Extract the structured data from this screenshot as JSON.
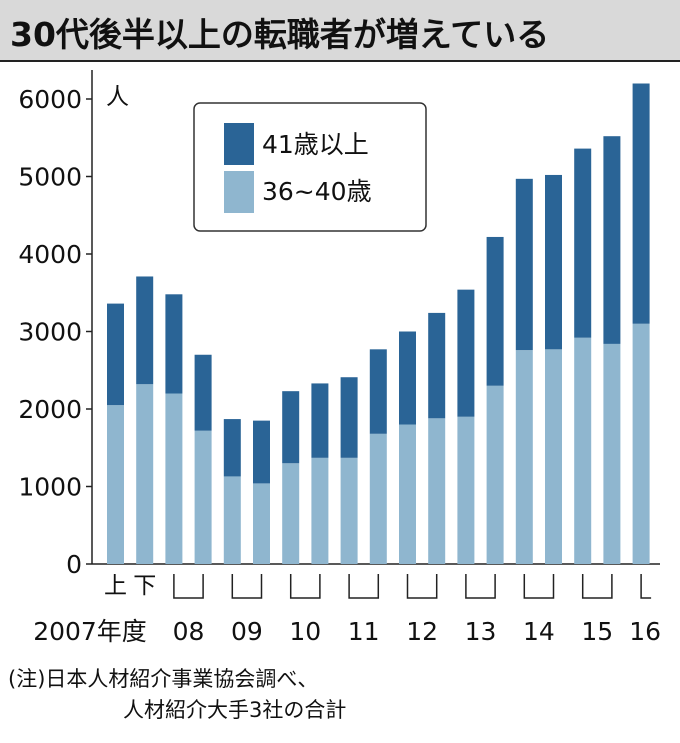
{
  "title": "30代後半以上の転職者が増えている",
  "note": {
    "line1": "(注)日本人材紹介事業協会調べ、",
    "line2": "人材紹介大手3社の合計"
  },
  "colors": {
    "older": "#2a6496",
    "younger": "#8fb6cf",
    "title_bg": "#d9d9d9"
  },
  "chart_data": {
    "type": "bar",
    "stacked": true,
    "title": "30代後半以上の転職者が増えている",
    "ylabel": "人",
    "xlabel": "",
    "ylim": [
      0,
      6200
    ],
    "yticks": [
      "0",
      "1000",
      "2000",
      "3000",
      "4000",
      "5000",
      "6000"
    ],
    "grid": false,
    "legend_position": "top-left",
    "half_labels": [
      "上",
      "下"
    ],
    "year_labels": [
      "2007年度",
      "08",
      "09",
      "10",
      "11",
      "12",
      "13",
      "14",
      "15",
      "16"
    ],
    "categories": [
      "2007上",
      "2007下",
      "2008上",
      "2008下",
      "2009上",
      "2009下",
      "2010上",
      "2010下",
      "2011上",
      "2011下",
      "2012上",
      "2012下",
      "2013上",
      "2013下",
      "2014上",
      "2014下",
      "2015上",
      "2015下",
      "2016上"
    ],
    "series": [
      {
        "name": "36~40歳",
        "values": [
          2050,
          2320,
          2200,
          1720,
          1130,
          1040,
          1300,
          1370,
          1370,
          1680,
          1800,
          1880,
          1900,
          2300,
          2760,
          2770,
          2920,
          2840,
          3100
        ]
      },
      {
        "name": "41歳以上",
        "values": [
          1310,
          1390,
          1280,
          980,
          740,
          810,
          930,
          960,
          1040,
          1090,
          1200,
          1360,
          1640,
          1920,
          2210,
          2250,
          2440,
          2680,
          3100
        ]
      }
    ]
  }
}
